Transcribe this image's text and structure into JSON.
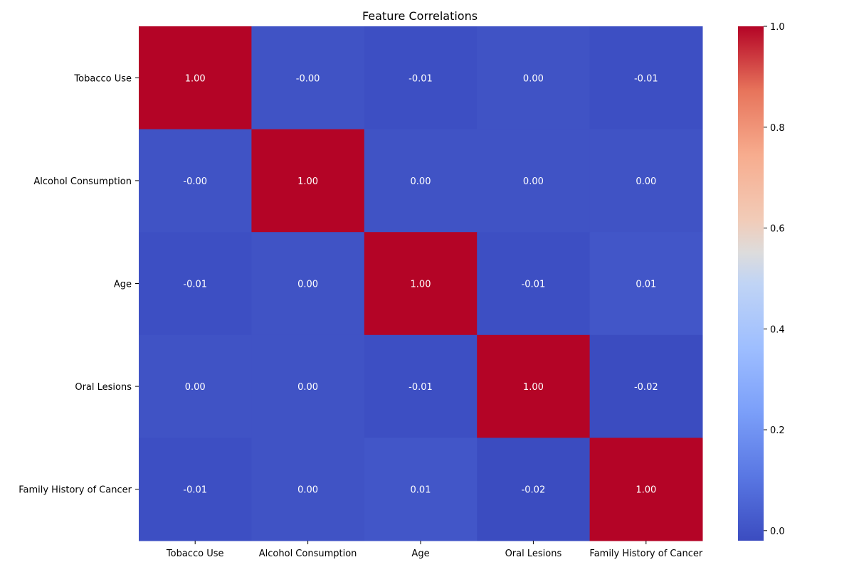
{
  "chart_data": {
    "type": "heatmap",
    "title": "Feature Correlations",
    "xlabel": "",
    "ylabel": "",
    "x_categories": [
      "Tobacco Use",
      "Alcohol Consumption",
      "Age",
      "Oral Lesions",
      "Family History of Cancer"
    ],
    "y_categories": [
      "Tobacco Use",
      "Alcohol Consumption",
      "Age",
      "Oral Lesions",
      "Family History of Cancer"
    ],
    "values": [
      [
        1.0,
        -0.0,
        -0.01,
        0.0,
        -0.01
      ],
      [
        -0.0,
        1.0,
        0.0,
        0.0,
        0.0
      ],
      [
        -0.01,
        0.0,
        1.0,
        -0.01,
        0.01
      ],
      [
        0.0,
        0.0,
        -0.01,
        1.0,
        -0.02
      ],
      [
        -0.01,
        0.0,
        0.01,
        -0.02,
        1.0
      ]
    ],
    "annotations": [
      [
        "1.00",
        "-0.00",
        "-0.01",
        "0.00",
        "-0.01"
      ],
      [
        "-0.00",
        "1.00",
        "0.00",
        "0.00",
        "0.00"
      ],
      [
        "-0.01",
        "0.00",
        "1.00",
        "-0.01",
        "0.01"
      ],
      [
        "0.00",
        "0.00",
        "-0.01",
        "1.00",
        "-0.02"
      ],
      [
        "-0.01",
        "0.00",
        "0.01",
        "-0.02",
        "1.00"
      ]
    ],
    "colormap": "coolwarm",
    "vmin": -0.02,
    "vmax": 1.0,
    "colorbar_ticks": [
      0.0,
      0.2,
      0.4,
      0.6,
      0.8,
      1.0
    ],
    "colorbar_tick_labels": [
      "0.0",
      "0.2",
      "0.4",
      "0.6",
      "0.8",
      "1.0"
    ],
    "grid": false,
    "legend": "colorbar right"
  }
}
